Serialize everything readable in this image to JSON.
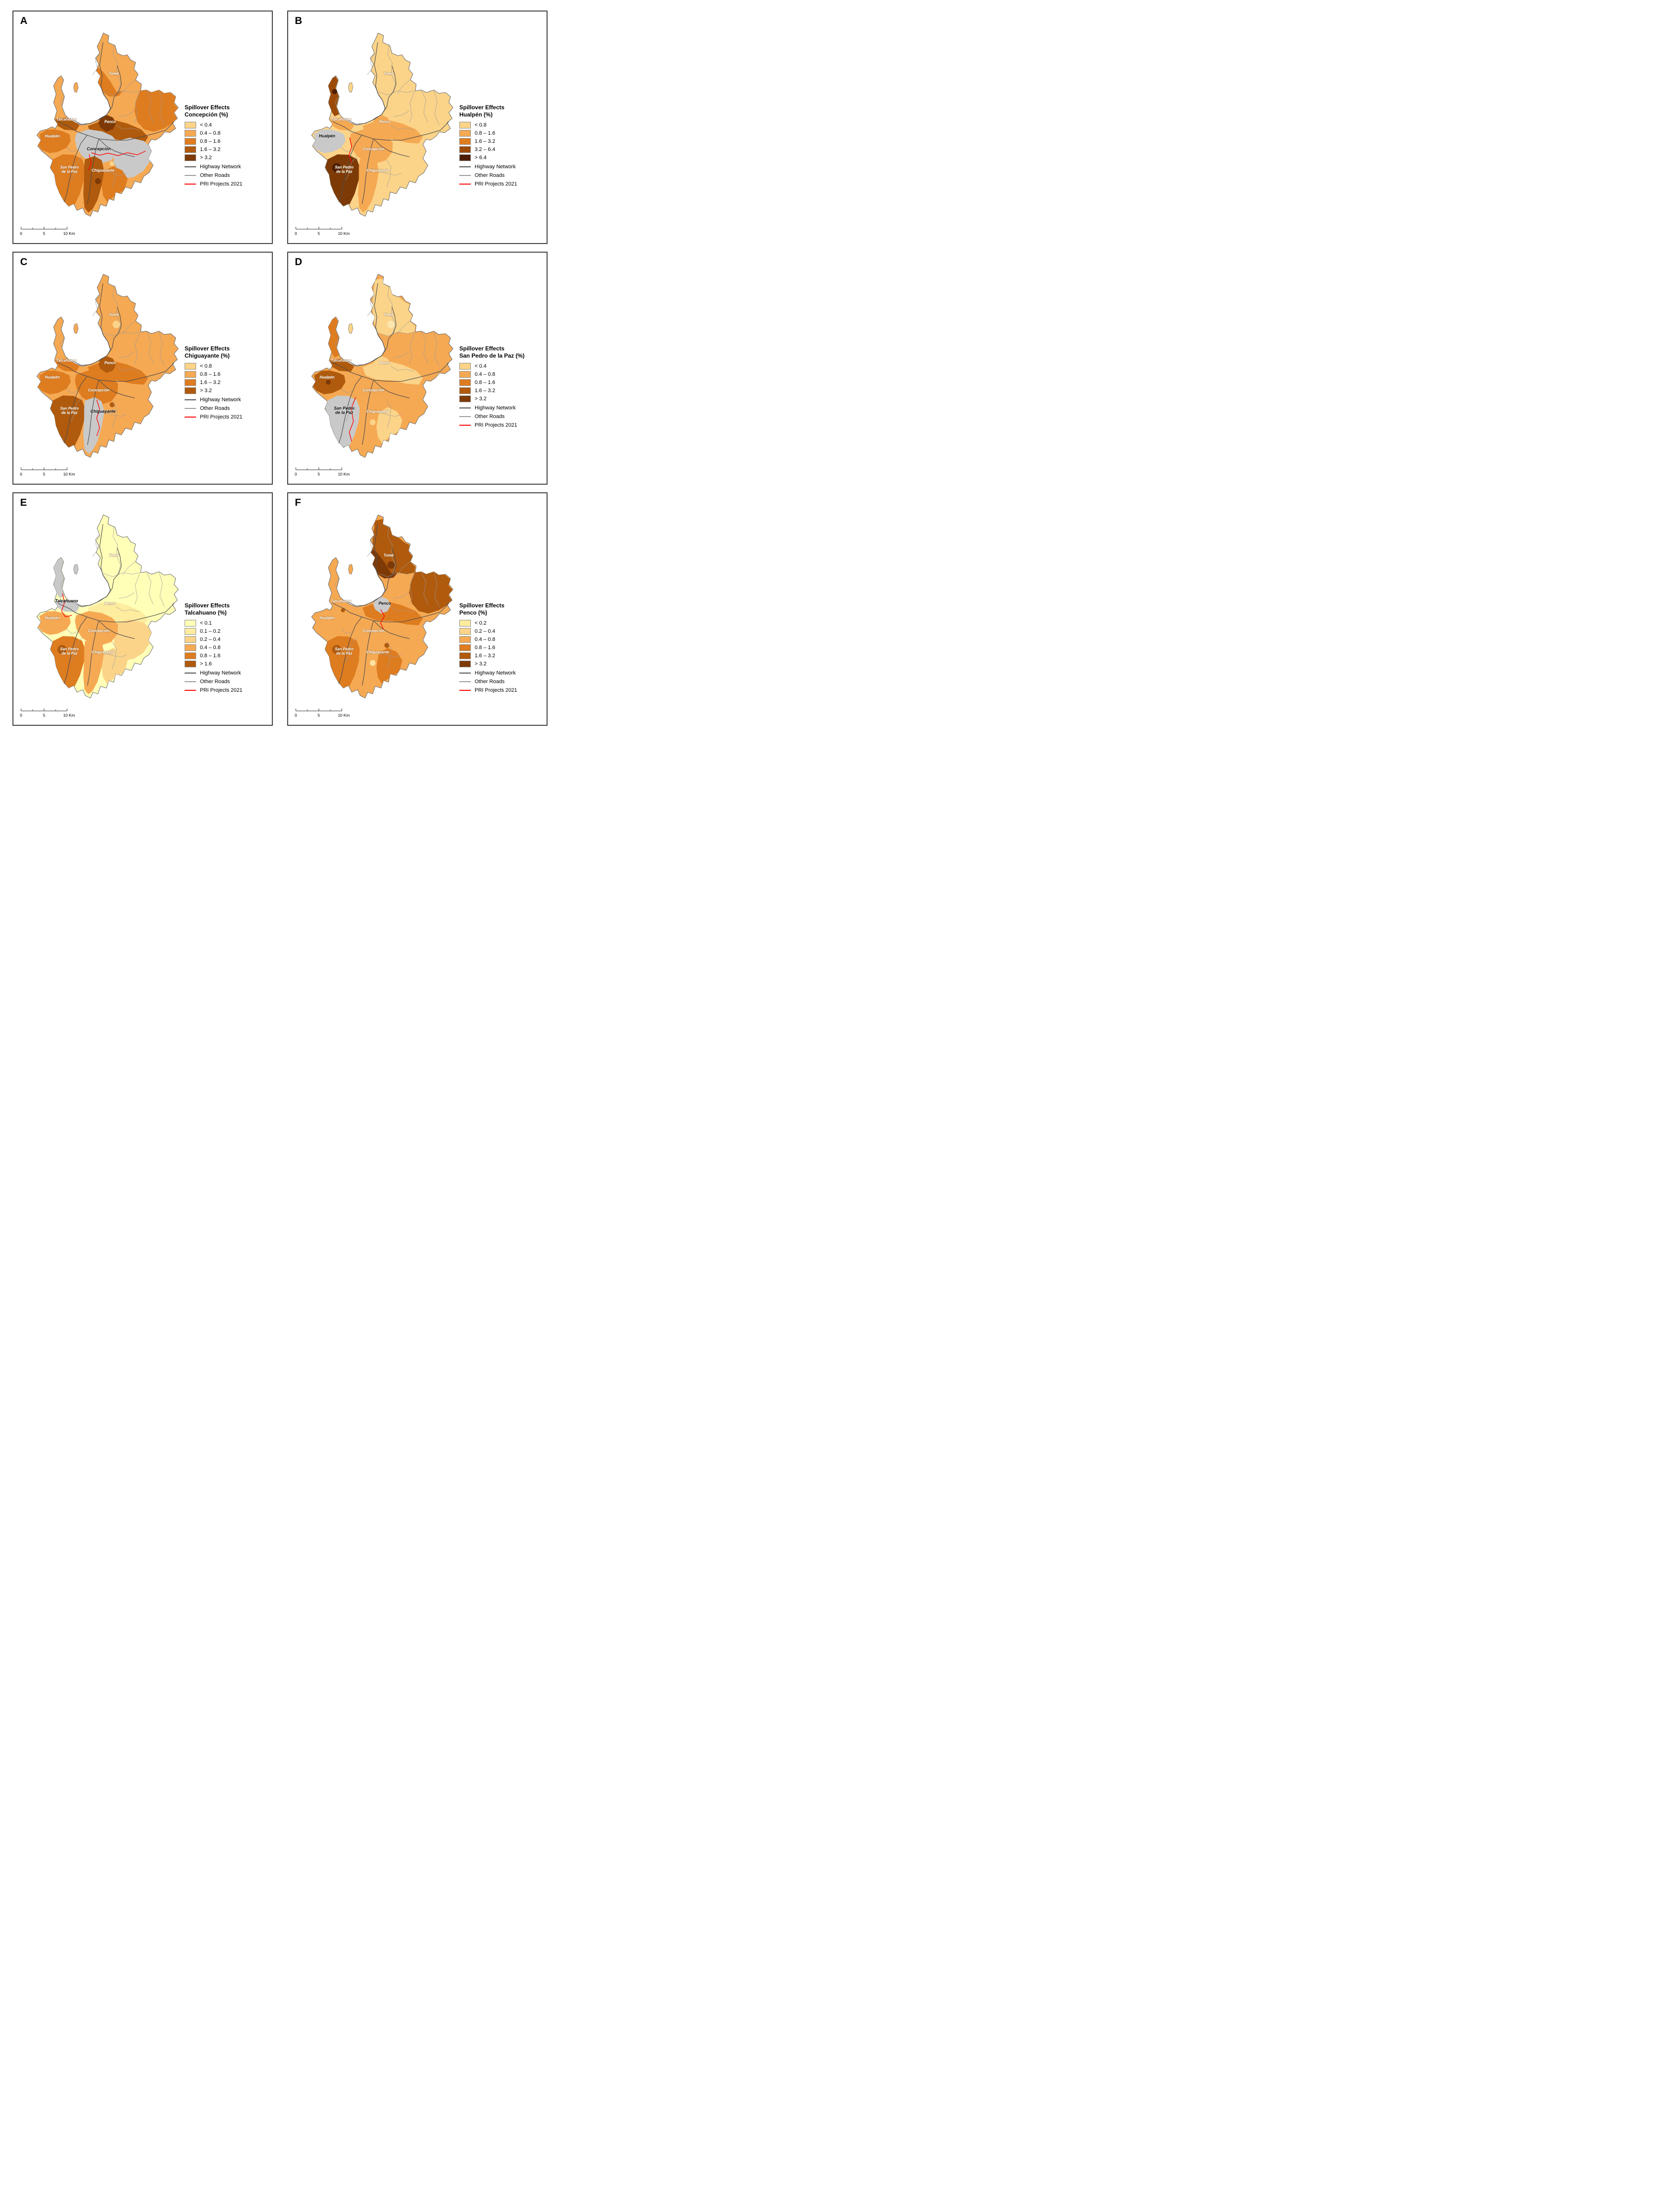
{
  "figure": {
    "map_labels": [
      {
        "id": "tome",
        "text": "Tomé"
      },
      {
        "id": "talcahuano",
        "text": "Talcahuano"
      },
      {
        "id": "penco",
        "text": "Penco"
      },
      {
        "id": "hualpen",
        "text": "Hualpén"
      },
      {
        "id": "concepcion",
        "text": "Concepción"
      },
      {
        "id": "san_pedro",
        "text": "San Pedro\nde la Paz"
      },
      {
        "id": "chiguayante",
        "text": "Chiguayante"
      }
    ],
    "colors": {
      "target_gray": "#C9C9C9",
      "region_border": "#6e6e6e",
      "highway": "#4d4d4d",
      "other_road": "#9b9b9b",
      "pri_red": "#FF0000"
    },
    "panels": [
      {
        "letter": "A",
        "target_id": "concepcion",
        "legend": {
          "title_line1": "Spillover Effects",
          "title_line2": "Concepción (%)",
          "classes": [
            {
              "label": "< 0.4",
              "color": "#FBD489"
            },
            {
              "label": "0.4 – 0.8",
              "color": "#F5A953"
            },
            {
              "label": "0.8 – 1.6",
              "color": "#DE7C20"
            },
            {
              "label": "1.6 – 3.2",
              "color": "#B05A0D"
            },
            {
              "label": "> 3.2",
              "color": "#7E3A06"
            }
          ],
          "lines": [
            {
              "label": "Highway Network",
              "color": "#4d4d4d"
            },
            {
              "label": "Other Roads",
              "color": "#9b9b9b"
            },
            {
              "label": "PRI Projects 2021",
              "color": "#FF0000"
            }
          ]
        },
        "scalebar": {
          "labels": [
            "0",
            "5",
            "10 Km"
          ]
        },
        "region_colors": {
          "base": "#F5A953",
          "tome_band": "#DE7C20",
          "northeast": "#DE7C20",
          "central": "#B05A0D",
          "penco": "#7E3A06",
          "talc_base": "#B05A0D",
          "hualpen": "#DE7C20",
          "conc_east": "#C9C9C9",
          "concepcion": "#C9C9C9",
          "san_pedro": "#DE7C20",
          "chiguayante": "#B05A0D",
          "south_se": "#DE7C20",
          "island": "#F5A953"
        },
        "dots": {
          "chig_dot": "#7E3A06",
          "conc_dot": "#FBD489"
        }
      },
      {
        "letter": "B",
        "target_id": "hualpen",
        "legend": {
          "title_line1": "Spillover Effects",
          "title_line2": "Hualpén (%)",
          "classes": [
            {
              "label": "< 0.8",
              "color": "#FBD489"
            },
            {
              "label": "0.8 – 1.6",
              "color": "#F5A953"
            },
            {
              "label": "1.6 – 3.2",
              "color": "#DE7C20"
            },
            {
              "label": "3.2 – 6.4",
              "color": "#9C4A08"
            },
            {
              "label": "> 6.4",
              "color": "#4C1D02"
            }
          ],
          "lines": [
            {
              "label": "Highway Network",
              "color": "#4d4d4d"
            },
            {
              "label": "Other Roads",
              "color": "#9b9b9b"
            },
            {
              "label": "PRI Projects 2021",
              "color": "#FF0000"
            }
          ]
        },
        "scalebar": {
          "labels": [
            "0",
            "5",
            "10 Km"
          ]
        },
        "region_colors": {
          "base": "#FBD489",
          "central": "#F5A953",
          "penco": "#F5A953",
          "talc_pen": "#9C4A08",
          "talc_base": "#F5A953",
          "hualpen": "#C9C9C9",
          "concepcion": "#F5A953",
          "san_pedro": "#7E3A06",
          "chiguayante": "#F5A953",
          "island": "#FBD489"
        },
        "dots": {
          "talc_dot": "#4C1D02",
          "sp_dot": "#4C1D02"
        }
      },
      {
        "letter": "C",
        "target_id": "chiguayante",
        "legend": {
          "title_line1": "Spillover Effects",
          "title_line2": "Chiguayante (%)",
          "classes": [
            {
              "label": "< 0.8",
              "color": "#FBD489"
            },
            {
              "label": "0.8 – 1.6",
              "color": "#F5A953"
            },
            {
              "label": "1.6 – 3.2",
              "color": "#DE7C20"
            },
            {
              "label": "> 3.2",
              "color": "#B05A0D"
            }
          ],
          "lines": [
            {
              "label": "Highway Network",
              "color": "#4d4d4d"
            },
            {
              "label": "Other Roads",
              "color": "#9b9b9b"
            },
            {
              "label": "PRI Projects 2021",
              "color": "#FF0000"
            }
          ]
        },
        "scalebar": {
          "labels": [
            "0",
            "5",
            "10 Km"
          ]
        },
        "region_colors": {
          "base": "#F5A953",
          "central": "#DE7C20",
          "penco": "#B05A0D",
          "talc_base": "#DE7C20",
          "hualpen": "#DE7C20",
          "concepcion": "#DE7C20",
          "san_pedro": "#B05A0D",
          "chiguayante": "#C9C9C9"
        },
        "dots": {
          "conc_dot": "#B05A0D",
          "tome_dot": "#FBD489"
        }
      },
      {
        "letter": "D",
        "target_id": "san_pedro",
        "legend": {
          "title_line1": "Spillover Effects",
          "title_line2": "San Pedro de la Paz (%)",
          "classes": [
            {
              "label": "< 0.4",
              "color": "#FBD489"
            },
            {
              "label": "0.4 – 0.8",
              "color": "#F5A953"
            },
            {
              "label": "0.8 – 1.6",
              "color": "#DE7C20"
            },
            {
              "label": "1.6 – 3.2",
              "color": "#B05A0D"
            },
            {
              "label": "> 3.2",
              "color": "#7E3A06"
            }
          ],
          "lines": [
            {
              "label": "Highway Network",
              "color": "#4d4d4d"
            },
            {
              "label": "Other Roads",
              "color": "#9b9b9b"
            },
            {
              "label": "PRI Projects 2021",
              "color": "#FF0000"
            }
          ]
        },
        "scalebar": {
          "labels": [
            "0",
            "5",
            "10 Km"
          ]
        },
        "region_colors": {
          "base": "#F5A953",
          "tome": "#FBD489",
          "central": "#FBD489",
          "penco": "#FBD489",
          "talc_pen": "#DE7C20",
          "talc_base": "#B05A0D",
          "hualpen": "#B05A0D",
          "san_pedro": "#C9C9C9",
          "south_se": "#FBD489",
          "island": "#FBD489"
        },
        "dots": {
          "tome_dot": "#FDE7AE",
          "hualpen_dot": "#7E3A06",
          "chig_dot": "#FBD489"
        }
      },
      {
        "letter": "E",
        "target_id": "talcahuano",
        "legend": {
          "title_line1": "Spillover Effects",
          "title_line2": "Talcahuano (%)",
          "classes": [
            {
              "label": "< 0.1",
              "color": "#FFFFB8"
            },
            {
              "label": "0.1 – 0.2",
              "color": "#FEEC9F"
            },
            {
              "label": "0.2 – 0.4",
              "color": "#FBD489"
            },
            {
              "label": "0.4 – 0.8",
              "color": "#F5A953"
            },
            {
              "label": "0.8 – 1.6",
              "color": "#DE7C20"
            },
            {
              "label": "> 1.6",
              "color": "#B05A0D"
            }
          ],
          "lines": [
            {
              "label": "Highway Network",
              "color": "#4d4d4d"
            },
            {
              "label": "Other Roads",
              "color": "#9b9b9b"
            },
            {
              "label": "PRI Projects 2021",
              "color": "#FF0000"
            }
          ]
        },
        "scalebar": {
          "labels": [
            "0",
            "5",
            "10 Km"
          ]
        },
        "region_colors": {
          "base": "#FFFFB8",
          "central": "#FEEC9F",
          "concepcion": "#F5A953",
          "conc_east": "#FBD489",
          "hualpen": "#F5A953",
          "talc_pen": "#C9C9C9",
          "talc_base": "#C9C9C9",
          "island": "#C9C9C9",
          "san_pedro": "#DE7C20",
          "chiguayante": "#F5A953",
          "south_se": "#FBD489"
        },
        "dots": {
          "sp_dot": "#B05A0D"
        }
      },
      {
        "letter": "F",
        "target_id": "penco",
        "legend": {
          "title_line1": "Spillover Effects",
          "title_line2": "Penco (%)",
          "classes": [
            {
              "label": "< 0.2",
              "color": "#FEEC9F"
            },
            {
              "label": "0.2 – 0.4",
              "color": "#FBD489"
            },
            {
              "label": "0.4 – 0.8",
              "color": "#F5A953"
            },
            {
              "label": "0.8 – 1.6",
              "color": "#DE7C20"
            },
            {
              "label": "1.6 – 3.2",
              "color": "#B05A0D"
            },
            {
              "label": "> 3.2",
              "color": "#7E3A06"
            }
          ],
          "lines": [
            {
              "label": "Highway Network",
              "color": "#4d4d4d"
            },
            {
              "label": "Other Roads",
              "color": "#9b9b9b"
            },
            {
              "label": "PRI Projects 2021",
              "color": "#FF0000"
            }
          ]
        },
        "scalebar": {
          "labels": [
            "0",
            "5",
            "10 Km"
          ]
        },
        "region_colors": {
          "base": "#F5A953",
          "tome": "#B05A0D",
          "tome_band": "#7E3A06",
          "northeast": "#B05A0D",
          "central": "#DE7C20",
          "penco": "#C9C9C9",
          "san_pedro": "#DE7C20",
          "south_se": "#DE7C20"
        },
        "dots": {
          "tome_dot": "#7E3A06",
          "conc_dot": "#B05A0D",
          "sp_dot": "#B05A0D",
          "chig_dot": "#FCE3A1",
          "talc_base_dot": "#B05A0D"
        }
      }
    ]
  }
}
